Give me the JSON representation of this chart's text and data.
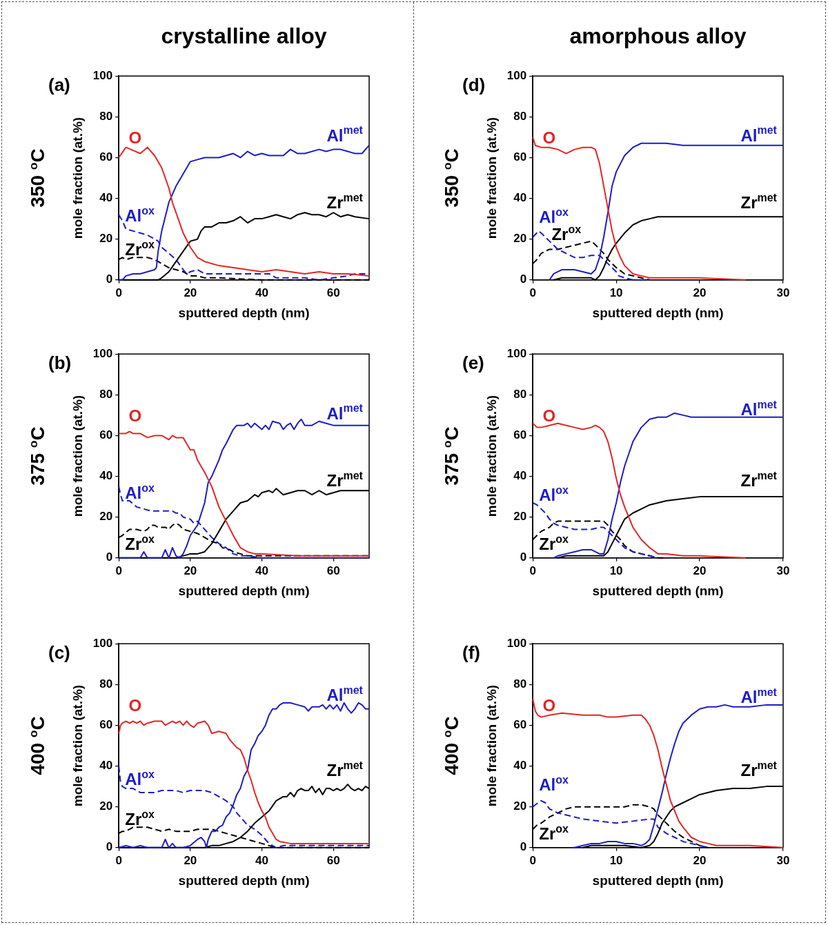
{
  "chart_data": [
    {
      "type": "line",
      "title": "crystalline alloy",
      "xlabel": "sputtered depth (nm)",
      "ylabel": "mole fraction (at.%)",
      "xlim": [
        0,
        70
      ],
      "xticks": [
        0,
        20,
        40,
        60
      ],
      "ylim": [
        0,
        100
      ],
      "yticks": [
        0,
        20,
        40,
        60,
        80,
        100
      ],
      "annotations": [
        "(a)",
        "350 $^{o}$C"
      ],
      "series": [
        {
          "name": "O",
          "color": "#e42525",
          "line_style": "solid",
          "x": [
            0,
            2,
            6,
            8,
            10,
            12,
            14,
            15,
            16,
            18,
            20,
            22,
            24,
            28,
            32,
            36,
            40,
            44,
            48,
            52,
            56,
            60,
            64,
            70
          ],
          "values": [
            60,
            65,
            62,
            65,
            61,
            55,
            45,
            38,
            33,
            23,
            16,
            11,
            9,
            7,
            6,
            5,
            4,
            5,
            4,
            3,
            4,
            3,
            3,
            2
          ]
        },
        {
          "name": "Al$^{met}$",
          "color": "#1c1cc8",
          "line_style": "solid",
          "x": [
            0,
            1,
            2,
            4,
            6,
            8,
            10,
            10.5,
            11,
            12,
            13,
            14,
            15,
            16,
            17,
            18,
            19,
            20,
            22,
            24,
            28,
            30,
            32,
            34,
            36,
            38,
            40,
            42,
            46,
            48,
            50,
            52,
            56,
            58,
            60,
            62,
            64,
            66,
            68,
            70
          ],
          "values": [
            0,
            0,
            2,
            3,
            3,
            4,
            5,
            6,
            14,
            24,
            31,
            38,
            42,
            46,
            49,
            52,
            55,
            58,
            59,
            60,
            60,
            61,
            62,
            60,
            63,
            61,
            62,
            61,
            61,
            64,
            62,
            62,
            64,
            63,
            64,
            64,
            63,
            62,
            62,
            66
          ]
        },
        {
          "name": "Zr$^{met}$",
          "color": "#000000",
          "line_style": "solid",
          "x": [
            0,
            11,
            12,
            14,
            16,
            18,
            20,
            22,
            23,
            24,
            26,
            28,
            30,
            32,
            34,
            36,
            38,
            40,
            42,
            44,
            46,
            48,
            50,
            52,
            54,
            56,
            58,
            60,
            62,
            64,
            66,
            70
          ],
          "values": [
            0,
            0,
            1,
            4,
            9,
            14,
            19,
            20,
            24,
            26,
            26,
            28,
            28,
            29,
            31,
            28,
            30,
            30,
            31,
            32,
            31,
            30,
            32,
            33,
            32,
            32,
            31,
            33,
            31,
            32,
            31,
            30
          ]
        },
        {
          "name": "Al$^{ox}$",
          "color": "#1c1cc8",
          "line_style": "dashed",
          "x": [
            0,
            1,
            2,
            4,
            6,
            8,
            10,
            11,
            12,
            14,
            16,
            18,
            19,
            20,
            22,
            24,
            28,
            32,
            36,
            40,
            42,
            44,
            48,
            52,
            56,
            60,
            64,
            66,
            70
          ],
          "values": [
            32,
            29,
            25,
            24,
            23,
            22,
            20,
            19,
            16,
            13,
            10,
            5,
            3,
            4,
            5,
            3,
            3,
            3,
            3,
            3,
            3,
            1,
            1,
            1,
            0,
            1,
            2,
            3,
            3
          ]
        },
        {
          "name": "Zr$^{ox}$",
          "color": "#000000",
          "line_style": "dashed",
          "x": [
            0,
            1,
            2,
            4,
            6,
            8,
            10,
            11,
            12,
            14,
            16,
            18,
            20,
            22,
            24,
            28,
            40,
            50,
            60,
            70
          ],
          "values": [
            10,
            11,
            10,
            11,
            11,
            11,
            10,
            9,
            8,
            6,
            5,
            4,
            2,
            2,
            1,
            1,
            0,
            0,
            0,
            0
          ]
        }
      ]
    },
    {
      "type": "line",
      "title": "amorphous alloy",
      "xlabel": "sputtered depth (nm)",
      "ylabel": "mole fraction (at.%)",
      "xlim": [
        0,
        30
      ],
      "xticks": [
        0,
        10,
        20,
        30
      ],
      "ylim": [
        0,
        100
      ],
      "yticks": [
        0,
        20,
        40,
        60,
        80,
        100
      ],
      "annotations": [
        "(d)",
        "350 $^{o}$C"
      ],
      "series": [
        {
          "name": "O",
          "color": "#e42525",
          "line_style": "solid",
          "x": [
            0,
            0.3,
            1,
            2,
            3,
            4,
            5,
            6,
            7,
            7.5,
            8,
            8.5,
            9,
            9.5,
            10,
            10.5,
            11,
            12,
            13,
            14,
            16,
            20,
            25.5
          ],
          "values": [
            70,
            66,
            65,
            65,
            64,
            62,
            64,
            65,
            65,
            64,
            57,
            46,
            35,
            24,
            16,
            11,
            7,
            3,
            2,
            1,
            1,
            1,
            0
          ]
        },
        {
          "name": "Al$^{met}$",
          "color": "#1c1cc8",
          "line_style": "solid",
          "x": [
            2,
            2.5,
            3,
            3.5,
            4,
            5,
            6,
            7,
            7.5,
            8,
            8.5,
            9,
            9.5,
            10,
            10.5,
            11,
            12,
            13,
            14,
            16,
            18,
            20,
            30
          ],
          "values": [
            0,
            3,
            4,
            5,
            5,
            5,
            4,
            3,
            5,
            11,
            21,
            33,
            46,
            53,
            57,
            61,
            65,
            67,
            67,
            67,
            66,
            66,
            66
          ]
        },
        {
          "name": "Zr$^{met}$",
          "color": "#000000",
          "line_style": "solid",
          "x": [
            2.5,
            3.5,
            5,
            6,
            7,
            7.5,
            8,
            8.5,
            9,
            9.5,
            10,
            11,
            12,
            13,
            14,
            15,
            16,
            30
          ],
          "values": [
            0,
            1,
            1,
            1,
            1,
            0,
            2,
            6,
            11,
            15,
            18,
            23,
            27,
            29,
            30,
            31,
            31,
            31
          ]
        },
        {
          "name": "Al$^{ox}$",
          "color": "#1c1cc8",
          "line_style": "dashed",
          "x": [
            0,
            0.7,
            1,
            2,
            3,
            4,
            5,
            6,
            7,
            8,
            8.5,
            9,
            9.5,
            10,
            10.3,
            11,
            12,
            14
          ],
          "values": [
            21,
            24,
            23,
            19,
            15,
            13,
            11,
            11,
            12,
            12,
            10,
            8,
            6,
            4,
            2,
            1,
            0,
            0
          ]
        },
        {
          "name": "Zr$^{ox}$",
          "color": "#000000",
          "line_style": "dashed",
          "x": [
            0,
            0.5,
            1,
            2,
            3,
            4,
            5,
            6,
            7,
            7.3,
            7.8,
            8.5,
            9,
            9.5,
            10,
            11,
            12,
            13,
            14
          ],
          "values": [
            8,
            10,
            13,
            15,
            15,
            16,
            17,
            18,
            19,
            18,
            16,
            13,
            10,
            8,
            6,
            3,
            2,
            1,
            0
          ]
        }
      ]
    },
    {
      "type": "line",
      "xlabel": "sputtered depth (nm)",
      "ylabel": "mole fraction (at.%)",
      "xlim": [
        0,
        70
      ],
      "xticks": [
        0,
        20,
        40,
        60
      ],
      "ylim": [
        0,
        100
      ],
      "yticks": [
        0,
        20,
        40,
        60,
        80,
        100
      ],
      "annotations": [
        "(b)",
        "375 $^{o}$C"
      ],
      "series": [
        {
          "name": "O",
          "color": "#e42525",
          "line_style": "solid",
          "x": [
            0,
            1,
            2,
            3,
            4,
            6,
            8,
            10,
            12,
            14,
            15,
            16,
            18,
            20,
            21,
            22,
            24,
            26,
            28,
            30,
            32,
            34,
            36,
            38,
            40,
            50,
            60,
            70
          ],
          "values": [
            61,
            61,
            61,
            62,
            61,
            61,
            59,
            60,
            60,
            58,
            60,
            59,
            59,
            53,
            53,
            48,
            42,
            35,
            25,
            18,
            11,
            5,
            3,
            2,
            2,
            1,
            1,
            1
          ]
        },
        {
          "name": "Al$^{met}$",
          "color": "#1c1cc8",
          "line_style": "solid",
          "x": [
            0,
            6,
            7,
            8,
            9,
            12,
            13,
            14,
            15,
            16,
            17,
            18,
            19,
            20,
            22,
            24,
            25,
            26,
            28,
            29,
            30,
            32,
            33,
            35,
            36,
            37,
            38,
            40,
            41,
            42,
            43,
            45,
            46,
            47,
            48,
            49,
            50,
            51,
            52,
            54,
            56,
            58,
            60,
            62,
            70
          ],
          "values": [
            0,
            0,
            3,
            0,
            0,
            0,
            4,
            0,
            5,
            1,
            0,
            2,
            6,
            11,
            16,
            27,
            37,
            40,
            48,
            53,
            56,
            63,
            65,
            65,
            66,
            64,
            66,
            63,
            65,
            63,
            67,
            66,
            63,
            65,
            66,
            63,
            66,
            68,
            65,
            65,
            67,
            66,
            65,
            65,
            65
          ]
        },
        {
          "name": "Zr$^{met}$",
          "color": "#000000",
          "line_style": "solid",
          "x": [
            0,
            14,
            16,
            18,
            20,
            22,
            24,
            26,
            28,
            30,
            32,
            34,
            36,
            38,
            39,
            40,
            42,
            43,
            44,
            46,
            48,
            50,
            52,
            54,
            56,
            58,
            60,
            62,
            70
          ],
          "values": [
            0,
            0,
            0,
            1,
            2,
            2,
            3,
            7,
            13,
            19,
            23,
            27,
            28,
            31,
            30,
            32,
            33,
            32,
            34,
            31,
            32,
            33,
            33,
            31,
            33,
            31,
            32,
            33,
            33
          ]
        },
        {
          "name": "Al$^{ox}$",
          "color": "#1c1cc8",
          "line_style": "dashed",
          "x": [
            0,
            0.5,
            1,
            3,
            5,
            7,
            9,
            11,
            13,
            15,
            16,
            17,
            18,
            20,
            21,
            22,
            24,
            26,
            28,
            30,
            32,
            34,
            36,
            40,
            70
          ],
          "values": [
            35,
            31,
            28,
            28,
            25,
            24,
            23,
            23,
            23,
            23,
            22,
            22,
            20,
            19,
            17,
            18,
            14,
            10,
            7,
            5,
            2,
            1,
            1,
            0,
            0
          ]
        },
        {
          "name": "Zr$^{ox}$",
          "color": "#000000",
          "line_style": "dashed",
          "x": [
            0,
            1,
            3,
            5,
            7,
            8,
            9,
            10,
            11,
            13,
            14,
            15,
            16,
            17,
            18,
            20,
            22,
            24,
            26,
            28,
            29,
            31,
            32,
            34,
            36,
            40,
            50,
            70
          ],
          "values": [
            10,
            11,
            14,
            14,
            13,
            14,
            16,
            16,
            15,
            15,
            14,
            16,
            17,
            16,
            14,
            13,
            12,
            10,
            8,
            7,
            5,
            4,
            3,
            2,
            1,
            1,
            1,
            1
          ]
        }
      ]
    },
    {
      "type": "line",
      "xlabel": "sputtered depth (nm)",
      "ylabel": "mole fraction (at.%)",
      "xlim": [
        0,
        30
      ],
      "xticks": [
        0,
        10,
        20,
        30
      ],
      "ylim": [
        0,
        100
      ],
      "yticks": [
        0,
        20,
        40,
        60,
        80,
        100
      ],
      "annotations": [
        "(e)",
        "375 $^{o}$C"
      ],
      "series": [
        {
          "name": "O",
          "color": "#e42525",
          "line_style": "solid",
          "x": [
            0,
            0.5,
            1,
            2,
            3,
            4,
            5,
            6,
            7,
            7.5,
            8,
            8.5,
            9,
            9.5,
            10,
            10.5,
            11,
            11.5,
            12,
            13,
            14,
            15,
            16,
            18,
            20,
            25.5
          ],
          "values": [
            66,
            64,
            64,
            65,
            66,
            65,
            64,
            63,
            64,
            65,
            64,
            62,
            57,
            49,
            39,
            31,
            25,
            20,
            15,
            9,
            5,
            2,
            2,
            1,
            1,
            0
          ]
        },
        {
          "name": "Al$^{met}$",
          "color": "#1c1cc8",
          "line_style": "solid",
          "x": [
            2.5,
            3,
            4,
            5,
            6,
            7,
            8,
            8.5,
            9,
            9.5,
            10,
            10.5,
            11,
            11.5,
            12,
            13,
            14,
            15,
            16,
            17,
            18,
            19,
            30
          ],
          "values": [
            0,
            1,
            2,
            3,
            4,
            4,
            2,
            2,
            9,
            19,
            27,
            37,
            45,
            51,
            57,
            64,
            68,
            69,
            69,
            71,
            70,
            69,
            69
          ]
        },
        {
          "name": "Zr$^{met}$",
          "color": "#000000",
          "line_style": "solid",
          "x": [
            3,
            4,
            5.5,
            7,
            8.5,
            9,
            9.5,
            10,
            10.5,
            11,
            12,
            13,
            14,
            15,
            16,
            18,
            20,
            21,
            30
          ],
          "values": [
            0,
            1,
            1,
            1,
            1,
            3,
            7,
            11,
            15,
            19,
            22,
            24,
            26,
            27,
            28,
            29,
            30,
            30,
            30
          ]
        },
        {
          "name": "Al$^{ox}$",
          "color": "#1c1cc8",
          "line_style": "dashed",
          "x": [
            0,
            0.5,
            1,
            1.5,
            2,
            2.5,
            3,
            4,
            5,
            6,
            7,
            8,
            8.5,
            9,
            9.5,
            10,
            10.5,
            11,
            11.5,
            12,
            13,
            14,
            15
          ],
          "values": [
            27,
            26,
            24,
            22,
            19,
            17,
            16,
            15,
            14,
            14,
            14,
            15,
            15,
            13,
            11,
            9,
            7,
            5,
            4,
            3,
            2,
            1,
            0
          ]
        },
        {
          "name": "Zr$^{ox}$",
          "color": "#000000",
          "line_style": "dashed",
          "x": [
            0,
            0.5,
            1,
            2,
            2.5,
            3,
            4,
            6,
            8,
            8.5,
            9,
            9.5,
            10,
            10.5,
            11,
            12,
            13,
            14,
            15,
            16
          ],
          "values": [
            9,
            11,
            13,
            15,
            17,
            18,
            18,
            18,
            18,
            18,
            16,
            13,
            11,
            9,
            6,
            3,
            2,
            1,
            0,
            0
          ]
        }
      ]
    },
    {
      "type": "line",
      "xlabel": "sputtered depth (nm)",
      "ylabel": "mole fraction (at.%)",
      "xlim": [
        0,
        70
      ],
      "xticks": [
        0,
        20,
        40,
        60
      ],
      "ylim": [
        0,
        100
      ],
      "yticks": [
        0,
        20,
        40,
        60,
        80,
        100
      ],
      "annotations": [
        "(c)",
        "400 $^{o}$C"
      ],
      "series": [
        {
          "name": "O",
          "color": "#e42525",
          "line_style": "solid",
          "x": [
            0,
            0.5,
            1,
            2,
            3,
            4,
            5,
            6,
            7,
            8,
            10,
            12,
            13,
            14,
            15,
            16,
            17,
            18,
            19,
            20,
            21,
            22,
            24,
            25,
            26,
            28,
            30,
            31,
            32,
            33,
            34,
            35,
            36,
            37,
            38,
            39,
            40,
            41,
            42,
            43,
            44,
            45,
            48,
            50,
            54,
            60,
            70
          ],
          "values": [
            56,
            60,
            61,
            62,
            61,
            62,
            61,
            62,
            60,
            61,
            62,
            62,
            60,
            61,
            62,
            61,
            62,
            60,
            62,
            60,
            59,
            61,
            62,
            60,
            56,
            57,
            56,
            53,
            51,
            49,
            48,
            44,
            38,
            33,
            27,
            22,
            18,
            15,
            10,
            7,
            4,
            3,
            2,
            2,
            2,
            2,
            2
          ]
        },
        {
          "name": "Al$^{met}$",
          "color": "#1c1cc8",
          "line_style": "solid",
          "x": [
            0,
            2,
            4,
            6,
            8,
            10,
            12,
            13,
            14,
            15,
            16,
            18,
            20,
            22,
            23,
            24,
            24.5,
            25,
            26,
            27,
            28,
            29,
            30,
            31,
            32,
            33,
            34,
            35,
            36,
            37,
            38,
            39,
            40,
            41,
            42,
            43,
            44,
            45,
            46,
            48,
            50,
            52,
            53,
            54,
            56,
            57,
            58,
            59,
            60,
            61,
            62,
            63,
            64,
            65,
            66,
            67,
            68,
            69,
            70
          ],
          "values": [
            0,
            1,
            0,
            1,
            0,
            0,
            0,
            4,
            0,
            2,
            0,
            0,
            1,
            4,
            5,
            3,
            0,
            4,
            8,
            8,
            10,
            11,
            15,
            17,
            21,
            26,
            29,
            35,
            38,
            48,
            51,
            55,
            57,
            60,
            65,
            68,
            68,
            70,
            71,
            71,
            70,
            69,
            67,
            69,
            69,
            70,
            68,
            70,
            68,
            70,
            67,
            71,
            68,
            66,
            68,
            71,
            70,
            68,
            68
          ]
        },
        {
          "name": "Zr$^{met}$",
          "color": "#000000",
          "line_style": "solid",
          "x": [
            0,
            24,
            26,
            28,
            30,
            32,
            34,
            36,
            38,
            40,
            42,
            44,
            46,
            47,
            48,
            49,
            50,
            51,
            52,
            53,
            54,
            55,
            56,
            57,
            58,
            59,
            60,
            61,
            62,
            63,
            64,
            65,
            66,
            67,
            68,
            69,
            70
          ],
          "values": [
            0,
            0,
            1,
            1,
            2,
            3,
            5,
            8,
            12,
            15,
            18,
            23,
            25,
            25,
            27,
            25,
            28,
            29,
            28,
            28,
            30,
            27,
            29,
            26,
            29,
            29,
            28,
            29,
            28,
            29,
            31,
            29,
            28,
            29,
            28,
            30,
            29
          ]
        },
        {
          "name": "Al$^{ox}$",
          "color": "#1c1cc8",
          "line_style": "dashed",
          "x": [
            0,
            0.5,
            1,
            2,
            4,
            6,
            8,
            10,
            12,
            14,
            16,
            18,
            20,
            22,
            24,
            26,
            28,
            30,
            32,
            33,
            34,
            36,
            38,
            40,
            42,
            44,
            46,
            70
          ],
          "values": [
            40,
            32,
            30,
            29,
            29,
            27,
            27,
            27,
            28,
            28,
            28,
            27,
            28,
            28,
            28,
            27,
            25,
            23,
            20,
            17,
            15,
            11,
            9,
            6,
            2,
            0,
            1,
            1
          ]
        },
        {
          "name": "Zr$^{ox}$",
          "color": "#000000",
          "line_style": "dashed",
          "x": [
            0,
            1,
            2,
            4,
            6,
            8,
            10,
            12,
            14,
            16,
            18,
            20,
            22,
            24,
            26,
            28,
            30,
            32,
            34,
            36,
            38,
            40,
            42,
            44,
            70
          ],
          "values": [
            7,
            8,
            8,
            10,
            10,
            10,
            9,
            8,
            9,
            8,
            8,
            8,
            9,
            9,
            9,
            8,
            7,
            6,
            5,
            4,
            3,
            2,
            1,
            0,
            0
          ]
        }
      ]
    },
    {
      "type": "line",
      "xlabel": "sputtered depth (nm)",
      "ylabel": "mole fraction (at.%)",
      "xlim": [
        0,
        30
      ],
      "xticks": [
        0,
        10,
        20,
        30
      ],
      "ylim": [
        0,
        100
      ],
      "yticks": [
        0,
        20,
        40,
        60,
        80,
        100
      ],
      "annotations": [
        "(f)",
        "400 $^{o}$C"
      ],
      "series": [
        {
          "name": "O",
          "color": "#e42525",
          "line_style": "solid",
          "x": [
            0,
            0.3,
            0.6,
            1,
            2,
            3.5,
            6,
            8,
            9,
            10,
            12,
            12.5,
            13,
            13.5,
            14,
            14.5,
            15,
            15.5,
            16,
            16.5,
            17,
            17.5,
            18,
            19,
            20,
            21,
            22,
            24,
            26,
            30
          ],
          "values": [
            73,
            67,
            65,
            64,
            65,
            66,
            65,
            65,
            64,
            64,
            65,
            65,
            65,
            63,
            60,
            55,
            48,
            39,
            31,
            23,
            18,
            13,
            10,
            5,
            3,
            2,
            1,
            1,
            1,
            0
          ]
        },
        {
          "name": "Al$^{met}$",
          "color": "#1c1cc8",
          "line_style": "solid",
          "x": [
            4.7,
            5,
            6,
            7,
            8,
            9,
            10,
            11,
            12,
            13,
            13.5,
            14,
            14.5,
            15,
            15.5,
            16,
            16.5,
            17,
            17.5,
            18,
            19,
            20,
            21,
            22,
            23,
            24,
            26,
            28,
            30
          ],
          "values": [
            0,
            0,
            1,
            2,
            2,
            3,
            3,
            2,
            2,
            1,
            2,
            4,
            11,
            19,
            27,
            36,
            44,
            51,
            57,
            61,
            65,
            68,
            69,
            69,
            70,
            69,
            69,
            70,
            70
          ]
        },
        {
          "name": "Zr$^{met}$",
          "color": "#000000",
          "line_style": "solid",
          "x": [
            6,
            7,
            9,
            11,
            13,
            14,
            14.5,
            15,
            15.5,
            16,
            16.5,
            17,
            18,
            19,
            20,
            21,
            22,
            24,
            26,
            28,
            30
          ],
          "values": [
            0,
            1,
            1,
            1,
            0,
            1,
            3,
            7,
            12,
            15,
            18,
            20,
            22,
            24,
            26,
            27,
            28,
            29,
            29,
            30,
            30
          ]
        },
        {
          "name": "Al$^{ox}$",
          "color": "#1c1cc8",
          "line_style": "dashed",
          "x": [
            0,
            0.3,
            1,
            1.5,
            2,
            3,
            4,
            5,
            6,
            8,
            10,
            12,
            14,
            14.5,
            15,
            16,
            17,
            18,
            19,
            20,
            21
          ],
          "values": [
            20,
            21,
            23,
            22,
            19,
            17,
            16,
            15,
            14,
            13,
            12,
            13,
            14,
            14,
            10,
            7,
            5,
            3,
            2,
            1,
            0
          ]
        },
        {
          "name": "Zr$^{ox}$",
          "color": "#000000",
          "line_style": "dashed",
          "x": [
            0,
            0.5,
            1,
            2,
            3,
            4,
            5,
            8,
            10,
            11,
            12,
            13,
            14,
            14.5,
            15,
            16,
            17,
            18,
            19,
            20,
            21
          ],
          "values": [
            9,
            11,
            12,
            15,
            17,
            19,
            20,
            20,
            20,
            20,
            21,
            21,
            20,
            19,
            16,
            12,
            8,
            5,
            3,
            1,
            0
          ]
        }
      ]
    }
  ]
}
